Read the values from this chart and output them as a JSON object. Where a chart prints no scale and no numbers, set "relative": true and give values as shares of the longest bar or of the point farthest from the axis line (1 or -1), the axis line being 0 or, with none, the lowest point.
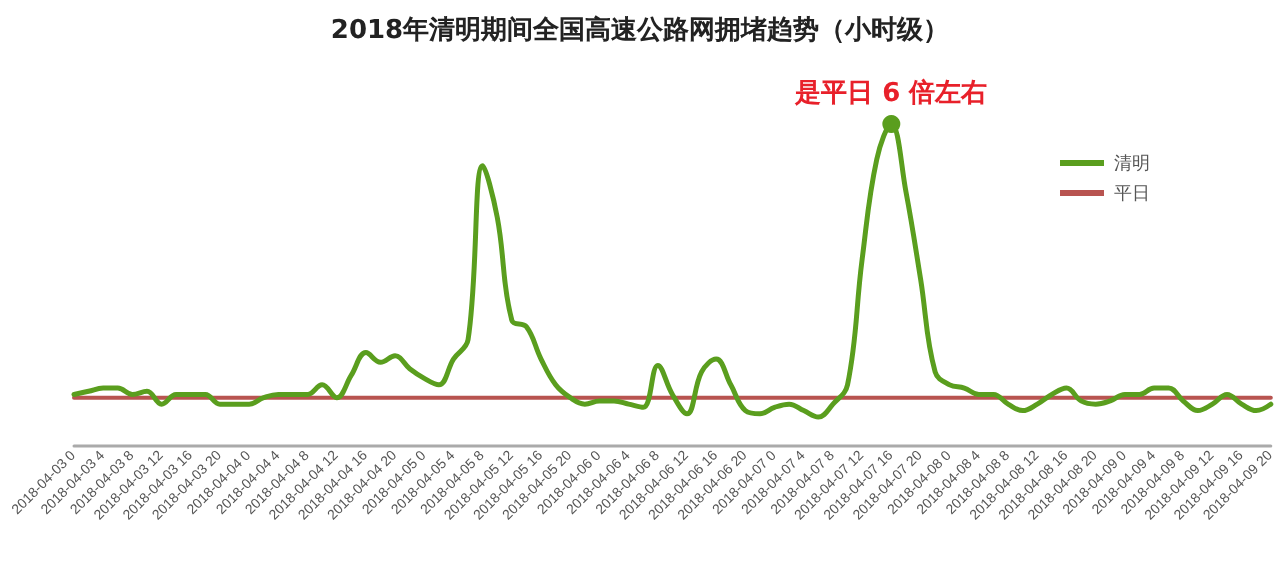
{
  "chart_data": {
    "type": "line",
    "title": "2018年清明期间全国高速公路网拥堵趋势（小时级）",
    "relative": true,
    "grid": false,
    "legend": "top right",
    "line_style": "solid",
    "categories": [
      "2018-04-03 0",
      null,
      "2018-04-03 4",
      null,
      "2018-04-03 8",
      null,
      "2018-04-03 12",
      null,
      "2018-04-03 16",
      null,
      "2018-04-03 20",
      null,
      "2018-04-04 0",
      null,
      "2018-04-04 4",
      null,
      "2018-04-04 8",
      null,
      "2018-04-04 12",
      null,
      "2018-04-04 16",
      null,
      "2018-04-04 20",
      null,
      "2018-04-05 0",
      null,
      "2018-04-05 4",
      null,
      "2018-04-05 8",
      null,
      "2018-04-05 12",
      null,
      "2018-04-05 16",
      null,
      "2018-04-05 20",
      null,
      "2018-04-06 0",
      null,
      "2018-04-06 4",
      null,
      "2018-04-06 8",
      null,
      "2018-04-06 12",
      null,
      "2018-04-06 16",
      null,
      "2018-04-06 20",
      null,
      "2018-04-07 0",
      null,
      "2018-04-07 4",
      null,
      "2018-04-07 8",
      null,
      "2018-04-07 12",
      null,
      "2018-04-07 16",
      null,
      "2018-04-07 20",
      null,
      "2018-04-08 0",
      null,
      "2018-04-08 4",
      null,
      "2018-04-08 8",
      null,
      "2018-04-08 12",
      null,
      "2018-04-08 16",
      null,
      "2018-04-08 20",
      null,
      "2018-04-09 0",
      null,
      "2018-04-09 4",
      null,
      "2018-04-09 8",
      null,
      "2018-04-09 12",
      null,
      "2018-04-09 16",
      null,
      "2018-04-09 20"
    ],
    "series": [
      {
        "name": "清明",
        "color": "#5a9e1e",
        "values": [
          0.16,
          0.17,
          0.18,
          0.18,
          0.16,
          0.17,
          0.13,
          0.16,
          0.16,
          0.16,
          0.13,
          0.13,
          0.13,
          0.15,
          0.16,
          0.16,
          0.16,
          0.19,
          0.15,
          0.22,
          0.29,
          0.26,
          0.28,
          0.24,
          0.21,
          0.19,
          0.27,
          0.33,
          0.87,
          0.71,
          0.39,
          0.37,
          0.27,
          0.19,
          0.15,
          0.13,
          0.14,
          0.14,
          0.13,
          0.12,
          0.25,
          0.16,
          0.1,
          0.23,
          0.27,
          0.19,
          0.11,
          0.1,
          0.12,
          0.13,
          0.11,
          0.09,
          0.13,
          0.19,
          0.58,
          0.89,
          1,
          0.79,
          0.52,
          0.23,
          0.19,
          0.18,
          0.16,
          0.16,
          0.13,
          0.11,
          0.13,
          0.16,
          0.18,
          0.14,
          0.13,
          0.14,
          0.16,
          0.16,
          0.18,
          0.18,
          0.14,
          0.11,
          0.13,
          0.16,
          0.13,
          0.11,
          0.13
        ]
      },
      {
        "name": "平日",
        "color": "#b85450",
        "values": [
          0.15,
          0.15,
          0.15,
          0.15,
          0.15,
          0.15,
          0.15,
          0.15,
          0.15,
          0.15,
          0.15,
          0.15,
          0.15,
          0.15,
          0.15,
          0.15,
          0.15,
          0.15,
          0.15,
          0.15,
          0.15,
          0.15,
          0.15,
          0.15,
          0.15,
          0.15,
          0.15,
          0.15,
          0.15,
          0.15,
          0.15,
          0.15,
          0.15,
          0.15,
          0.15,
          0.15,
          0.15,
          0.15,
          0.15,
          0.15,
          0.15,
          0.15,
          0.15,
          0.15,
          0.15,
          0.15,
          0.15,
          0.15,
          0.15,
          0.15,
          0.15,
          0.15,
          0.15,
          0.15,
          0.15,
          0.15,
          0.15,
          0.15,
          0.15,
          0.15,
          0.15,
          0.15,
          0.15,
          0.15,
          0.15,
          0.15,
          0.15,
          0.15,
          0.15,
          0.15,
          0.15,
          0.15,
          0.15,
          0.15,
          0.15,
          0.15,
          0.15,
          0.15,
          0.15,
          0.15,
          0.15,
          0.15,
          0.15
        ]
      }
    ],
    "annotations": [
      {
        "text": "是平日 6 倍左右",
        "x": "2018-04-07 16",
        "y": 1
      }
    ]
  }
}
